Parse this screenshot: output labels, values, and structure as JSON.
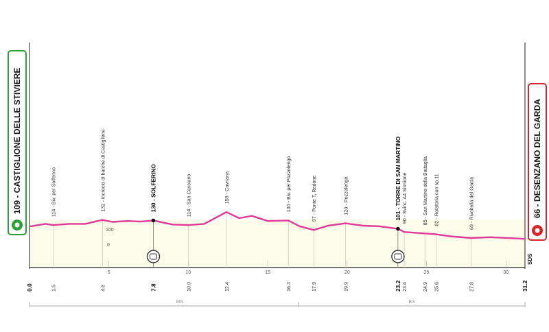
{
  "start": {
    "text": "109 - CASTIGLIONE DELLE STIVIERE",
    "color": "#2e9e3a",
    "icon": "start-circle-icon"
  },
  "finish": {
    "text": "66 - DESENZANO DEL GARDA",
    "color": "#d8232a",
    "icon": "finish-circle-icon"
  },
  "profile_color": "#e03a98",
  "brand": "SDS",
  "elev_ref": [
    "100",
    "0"
  ],
  "regions": [
    "MN",
    "BS"
  ],
  "axis_ticks": [
    "5",
    "10",
    "15",
    "20",
    "25",
    "30"
  ],
  "points": [
    {
      "km": "1.5",
      "label": "114 - Biv. per Solferino",
      "major": false
    },
    {
      "km": "4.6",
      "label": "132 - Incrocio di barche di Castiglione",
      "major": false
    },
    {
      "km": "7.8",
      "label": "130 - SOLFERINO",
      "major": true,
      "sprint": true
    },
    {
      "km": "10.0",
      "label": "114 - San Cassiano",
      "major": false
    },
    {
      "km": "12.4",
      "label": "159 - Cavriana",
      "major": false
    },
    {
      "km": "16.3",
      "label": "130 - Biv. per Pozzolengo",
      "major": false
    },
    {
      "km": "17.9",
      "label": "97 - Ponte T. Redone",
      "major": false
    },
    {
      "km": "19.9",
      "label": "120 - Pozzolengo",
      "major": false
    },
    {
      "km": "23.2",
      "label": "101 - TORRE DI SAN MARTINO",
      "major": true,
      "sprint": true
    },
    {
      "km": "23.6",
      "label": "90 - Svinc. A4 Sirmione",
      "major": false
    },
    {
      "km": "24.9",
      "label": "85 - San Martino della Battaglia",
      "major": false
    },
    {
      "km": "25.6",
      "label": "82 - Rotatoria con sp.11",
      "major": false
    },
    {
      "km": "27.8",
      "label": "69 - Rivoltella del Garda",
      "major": false
    }
  ],
  "start_km": "0.0",
  "finish_km": "31.2",
  "chart_data": {
    "type": "area",
    "x_unit": "km",
    "y_unit": "m",
    "xlim": [
      0,
      31.2
    ],
    "x": [
      0,
      1.0,
      1.5,
      2.5,
      3.5,
      4.6,
      5.2,
      6.2,
      7.0,
      7.8,
      9.0,
      10.0,
      11.0,
      12.4,
      13.2,
      14.0,
      15.0,
      16.3,
      17.0,
      17.9,
      18.8,
      19.9,
      21.0,
      22.0,
      23.2,
      23.6,
      24.9,
      25.6,
      26.5,
      27.8,
      29.0,
      30.5,
      31.2
    ],
    "y": [
      109,
      118,
      114,
      118,
      118,
      132,
      125,
      128,
      126,
      130,
      116,
      114,
      118,
      159,
      138,
      146,
      128,
      130,
      110,
      97,
      112,
      120,
      112,
      110,
      101,
      90,
      85,
      82,
      75,
      69,
      72,
      68,
      66
    ]
  }
}
